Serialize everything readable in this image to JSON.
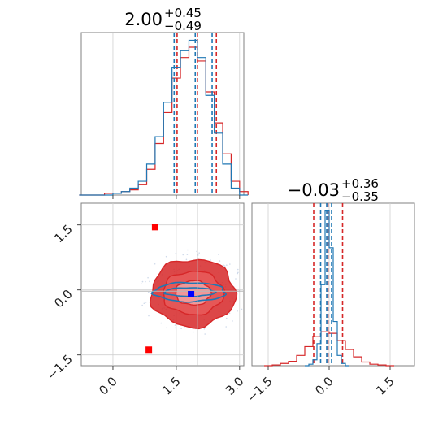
{
  "chart_data": {
    "type": "corner",
    "grid": true,
    "colors": {
      "reference": "#d62728",
      "sample": "#1f77b4",
      "marker_square": "#ff0000",
      "marker_truth": "#0000ff"
    },
    "panels": [
      {
        "id": "hist_param1",
        "type": "step-histogram",
        "title_value": "2.00",
        "title_plus": "+0.45",
        "title_minus": "−0.49",
        "xlim": [
          -0.75,
          3.1
        ],
        "x_ticks": [
          0.0,
          1.5,
          3.0
        ],
        "tick_labels": [],
        "series": [
          {
            "name": "",
            "color": "#d62728",
            "quantiles": [
              1.52,
              2.0,
              2.45
            ],
            "x": [
              -0.7,
              -0.5,
              -0.3,
              -0.1,
              0.1,
              0.3,
              0.5,
              0.7,
              0.9,
              1.1,
              1.3,
              1.5,
              1.7,
              1.9,
              2.1,
              2.3,
              2.5,
              2.7,
              2.9,
              3.1
            ],
            "counts": [
              0,
              0,
              0,
              1,
              1,
              2,
              3,
              6,
              15,
              30,
              48,
              68,
              80,
              86,
              78,
              60,
              42,
              24,
              8,
              2
            ]
          },
          {
            "name": "",
            "color": "#1f77b4",
            "quantiles": [
              1.45,
              1.95,
              2.35
            ],
            "x": [
              -0.7,
              -0.5,
              -0.3,
              -0.1,
              0.1,
              0.3,
              0.5,
              0.7,
              0.9,
              1.1,
              1.3,
              1.5,
              1.7,
              1.9,
              2.1,
              2.3,
              2.5,
              2.7,
              2.9,
              3.1
            ],
            "counts": [
              0,
              0,
              0,
              0,
              1,
              2,
              4,
              8,
              18,
              34,
              54,
              74,
              84,
              90,
              80,
              58,
              36,
              18,
              4,
              0
            ]
          }
        ]
      },
      {
        "id": "joint",
        "type": "contour-scatter",
        "xlim": [
          -0.75,
          3.1
        ],
        "ylim": [
          -1.75,
          2.0
        ],
        "x_ticks": [
          0.0,
          1.5,
          3.0
        ],
        "y_ticks": [
          -1.5,
          0.0,
          1.5
        ],
        "x_tick_labels": [
          "0.0",
          "1.5",
          "3.0"
        ],
        "y_tick_labels": [
          "−1.5",
          "0.0",
          "1.5"
        ],
        "crosshair": {
          "x": 2.0,
          "y": -0.03
        },
        "reference_contour": {
          "color": "#d62728",
          "center": [
            1.9,
            -0.07
          ],
          "radii": [
            [
              0.42,
              0.28
            ],
            [
              0.72,
              0.5
            ],
            [
              1.0,
              0.78
            ]
          ]
        },
        "sample_contour": {
          "color": "#1f77b4",
          "center": [
            1.82,
            -0.05
          ],
          "radii": [
            [
              0.6,
              0.1
            ],
            [
              0.85,
              0.22
            ]
          ]
        },
        "markers": [
          {
            "name": "",
            "shape": "square",
            "color": "#ff0000",
            "x": 1.0,
            "y": 1.45
          },
          {
            "name": "",
            "shape": "square",
            "color": "#ff0000",
            "x": 0.85,
            "y": -1.38
          },
          {
            "name": "",
            "shape": "square",
            "color": "#0000ff",
            "x": 1.85,
            "y": -0.1
          }
        ]
      },
      {
        "id": "hist_param2",
        "type": "step-histogram",
        "title_value": "−0.03",
        "title_plus": "+0.36",
        "title_minus": "−0.35",
        "xlim": [
          -1.9,
          2.1
        ],
        "x_ticks": [
          -1.5,
          0.0,
          1.5
        ],
        "x_tick_labels": [
          "−1.5",
          "0.0",
          "1.5"
        ],
        "series": [
          {
            "name": "",
            "color": "#d62728",
            "quantiles": [
              -0.38,
              -0.03,
              0.33
            ],
            "x": [
              -1.5,
              -1.3,
              -1.1,
              -0.9,
              -0.7,
              -0.5,
              -0.3,
              -0.1,
              0.1,
              0.3,
              0.5,
              0.7,
              0.9,
              1.1,
              1.3,
              1.5
            ],
            "counts": [
              0,
              1,
              3,
              6,
              14,
              26,
              40,
              46,
              44,
              34,
              22,
              12,
              5,
              2,
              1,
              0
            ]
          },
          {
            "name": "",
            "color": "#1f77b4",
            "quantiles": [
              -0.21,
              -0.06,
              0.06
            ],
            "x": [
              -0.55,
              -0.45,
              -0.35,
              -0.25,
              -0.15,
              -0.05,
              0.05,
              0.15,
              0.25,
              0.35,
              0.45
            ],
            "counts": [
              0,
              2,
              8,
              30,
              110,
              210,
              160,
              60,
              14,
              3,
              0
            ]
          }
        ]
      }
    ]
  }
}
